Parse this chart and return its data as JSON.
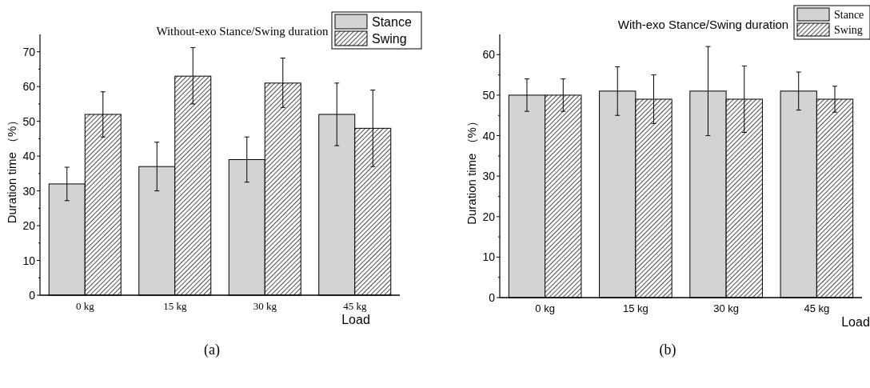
{
  "chart_data": [
    {
      "type": "bar",
      "title": "Without-exo Stance/Swing duration",
      "xlabel": "Load",
      "ylabel": "Duration time （%）",
      "categories": [
        "0 kg",
        "15 kg",
        "30 kg",
        "45 kg"
      ],
      "ylim": [
        0,
        75
      ],
      "yticks": [
        0,
        10,
        20,
        30,
        40,
        50,
        60,
        70
      ],
      "legend": "top right",
      "grid": false,
      "annotations": [
        "(a)"
      ],
      "series": [
        {
          "name": "Stance",
          "color": "#d3d3d3",
          "values": [
            32,
            37,
            39,
            52
          ],
          "errors": [
            [
              27.2,
              36.8
            ],
            [
              30,
              44
            ],
            [
              32.5,
              45.5
            ],
            [
              43,
              61
            ]
          ]
        },
        {
          "name": "Swing",
          "color": "#000000",
          "values": [
            52,
            63,
            61,
            48
          ],
          "errors": [
            [
              45.5,
              58.5
            ],
            [
              55,
              71.2
            ],
            [
              54,
              68.2
            ],
            [
              37,
              59
            ]
          ]
        }
      ]
    },
    {
      "type": "bar",
      "title": "With-exo Stance/Swing duration",
      "xlabel": "Load",
      "ylabel": "Duration time （%）",
      "categories": [
        "0 kg",
        "15 kg",
        "30 kg",
        "45 kg"
      ],
      "ylim": [
        0,
        65
      ],
      "yticks": [
        0,
        10,
        20,
        30,
        40,
        50,
        60
      ],
      "legend": "top right",
      "grid": false,
      "annotations": [
        "(b)"
      ],
      "series": [
        {
          "name": "Stance",
          "color": "#d3d3d3",
          "values": [
            50,
            51,
            51,
            51
          ],
          "errors": [
            [
              46,
              54
            ],
            [
              45,
              57
            ],
            [
              40,
              62
            ],
            [
              46.3,
              55.7
            ]
          ]
        },
        {
          "name": "Swing",
          "color": "#000000",
          "values": [
            50,
            49,
            49,
            49
          ],
          "errors": [
            [
              46,
              54
            ],
            [
              43,
              55
            ],
            [
              40.8,
              57.2
            ],
            [
              45.8,
              52.2
            ]
          ]
        }
      ]
    }
  ]
}
